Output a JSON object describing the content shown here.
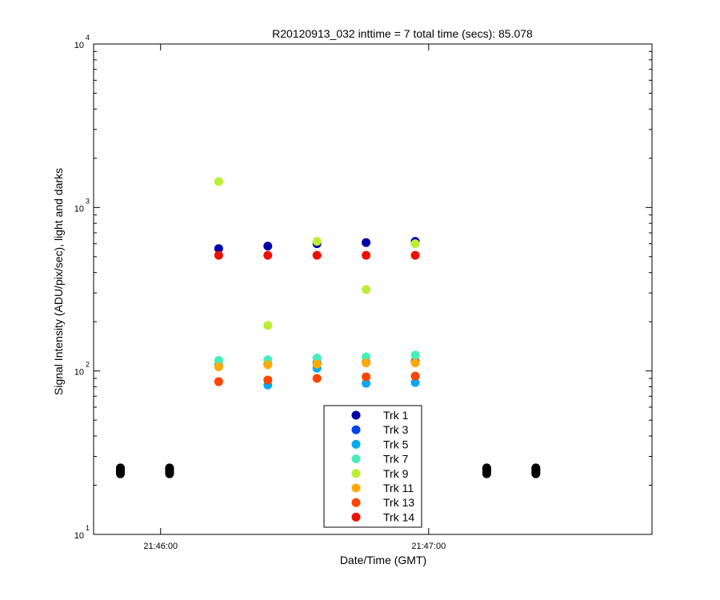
{
  "chart_data": {
    "type": "scatter",
    "title": "R20120913_032 inttime = 7 total time (secs): 85.078",
    "xlabel": "Date/Time (GMT)",
    "ylabel": "Signal Intensity (ADU/pix/sec), light and darks",
    "yscale": "log",
    "ylim": [
      10,
      10000
    ],
    "xlim": [
      "21:45:45",
      "21:47:50"
    ],
    "x_ticks": [
      "21:46:00",
      "21:47:00"
    ],
    "y_ticks": [
      {
        "base": "10",
        "exp": "1"
      },
      {
        "base": "10",
        "exp": "2"
      },
      {
        "base": "10",
        "exp": "3"
      },
      {
        "base": "10",
        "exp": "4"
      }
    ],
    "grid": false,
    "legend_position": "bottom-center",
    "dark_series": {
      "color": "#000000",
      "x": [
        "21:45:51",
        "21:46:02",
        "21:47:13",
        "21:47:24"
      ],
      "y": [
        [
          23.5,
          24,
          24.5,
          25,
          25.5
        ],
        [
          23.5,
          24,
          24.5,
          25,
          25.5
        ],
        [
          23.5,
          24,
          24.5,
          25,
          25.5
        ],
        [
          23.5,
          24,
          24.5,
          25,
          25.5
        ]
      ]
    },
    "light_x": [
      "21:46:13",
      "21:46:24",
      "21:46:35",
      "21:46:46",
      "21:46:57"
    ],
    "series": [
      {
        "name": "Trk 1",
        "color": "#0000aa",
        "values": [
          560,
          580,
          600,
          610,
          620
        ]
      },
      {
        "name": "Trk 3",
        "color": "#0044ee",
        "values": [
          108,
          110,
          112,
          113,
          114
        ]
      },
      {
        "name": "Trk 5",
        "color": "#00aaee",
        "values": [
          108,
          82,
          104,
          84,
          85
        ]
      },
      {
        "name": "Trk 7",
        "color": "#44eebb",
        "values": [
          116,
          117,
          120,
          122,
          125
        ]
      },
      {
        "name": "Trk 9",
        "color": "#bbee33",
        "values": [
          1440,
          190,
          620,
          315,
          600
        ]
      },
      {
        "name": "Trk 11",
        "color": "#ffaa00",
        "values": [
          106,
          109,
          110,
          112,
          112
        ]
      },
      {
        "name": "Trk 13",
        "color": "#ff4400",
        "values": [
          86,
          88,
          90,
          92,
          93
        ]
      },
      {
        "name": "Trk 14",
        "color": "#ee1100",
        "values": [
          510,
          510,
          510,
          510,
          510
        ]
      }
    ]
  }
}
